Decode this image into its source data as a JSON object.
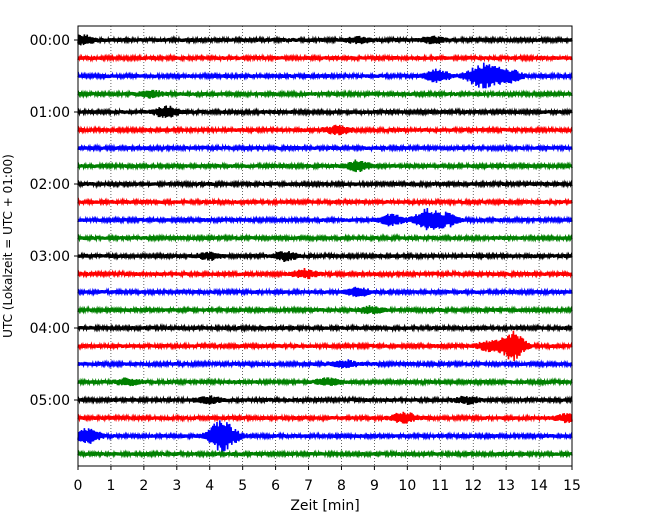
{
  "chart_data": {
    "type": "line",
    "title": "",
    "xlabel": "Zeit  [min]",
    "ylabel": "UTC (Lokalzeit = UTC + 01:00)",
    "xlim": [
      0,
      15
    ],
    "xticks": [
      "0",
      "1",
      "2",
      "3",
      "4",
      "5",
      "6",
      "7",
      "8",
      "9",
      "10",
      "11",
      "12",
      "13",
      "14",
      "15"
    ],
    "yticks": [
      {
        "label": "00:00",
        "row": 0
      },
      {
        "label": "01:00",
        "row": 4
      },
      {
        "label": "02:00",
        "row": 8
      },
      {
        "label": "03:00",
        "row": 12
      },
      {
        "label": "04:00",
        "row": 16
      },
      {
        "label": "05:00",
        "row": 20
      }
    ],
    "grid": "vertical dotted",
    "row_minutes": 15,
    "trace_colors": [
      "#000000",
      "#ff0000",
      "#0000ff",
      "#008000"
    ],
    "rows": [
      {
        "start": "00:00",
        "events": [
          {
            "t": 0.15,
            "amp": 4
          },
          {
            "t": 8.5,
            "amp": 3
          },
          {
            "t": 10.8,
            "amp": 3
          }
        ]
      },
      {
        "start": "00:15",
        "events": []
      },
      {
        "start": "00:30",
        "events": [
          {
            "t": 10.9,
            "amp": 6
          },
          {
            "t": 12.1,
            "amp": 7
          },
          {
            "t": 12.5,
            "amp": 9
          },
          {
            "t": 13.1,
            "amp": 6
          }
        ]
      },
      {
        "start": "00:45",
        "events": [
          {
            "t": 2.2,
            "amp": 3
          }
        ]
      },
      {
        "start": "01:00",
        "events": [
          {
            "t": 2.7,
            "amp": 5
          }
        ]
      },
      {
        "start": "01:15",
        "events": [
          {
            "t": 7.9,
            "amp": 4
          }
        ]
      },
      {
        "start": "01:30",
        "events": []
      },
      {
        "start": "01:45",
        "events": [
          {
            "t": 8.5,
            "amp": 5
          }
        ]
      },
      {
        "start": "02:00",
        "events": []
      },
      {
        "start": "02:15",
        "events": []
      },
      {
        "start": "02:30",
        "events": [
          {
            "t": 9.5,
            "amp": 5
          },
          {
            "t": 10.6,
            "amp": 10
          },
          {
            "t": 11.2,
            "amp": 6
          }
        ]
      },
      {
        "start": "02:45",
        "events": []
      },
      {
        "start": "03:00",
        "events": [
          {
            "t": 4.0,
            "amp": 3
          },
          {
            "t": 6.3,
            "amp": 4
          }
        ]
      },
      {
        "start": "03:15",
        "events": [
          {
            "t": 6.9,
            "amp": 4
          }
        ]
      },
      {
        "start": "03:30",
        "events": [
          {
            "t": 8.5,
            "amp": 4
          }
        ]
      },
      {
        "start": "03:45",
        "events": [
          {
            "t": 8.9,
            "amp": 3
          }
        ]
      },
      {
        "start": "04:00",
        "events": []
      },
      {
        "start": "04:15",
        "events": [
          {
            "t": 12.5,
            "amp": 5
          },
          {
            "t": 13.2,
            "amp": 14
          }
        ]
      },
      {
        "start": "04:30",
        "events": [
          {
            "t": 8.1,
            "amp": 3
          }
        ]
      },
      {
        "start": "04:45",
        "events": [
          {
            "t": 1.5,
            "amp": 3
          },
          {
            "t": 7.6,
            "amp": 3
          }
        ]
      },
      {
        "start": "05:00",
        "events": [
          {
            "t": 4.0,
            "amp": 3
          },
          {
            "t": 11.8,
            "amp": 3
          }
        ]
      },
      {
        "start": "05:15",
        "events": [
          {
            "t": 9.9,
            "amp": 5
          },
          {
            "t": 14.9,
            "amp": 4
          }
        ]
      },
      {
        "start": "05:30",
        "events": [
          {
            "t": 0.3,
            "amp": 7
          },
          {
            "t": 4.3,
            "amp": 12
          },
          {
            "t": 4.6,
            "amp": 5
          }
        ]
      },
      {
        "start": "05:45",
        "events": []
      }
    ]
  }
}
